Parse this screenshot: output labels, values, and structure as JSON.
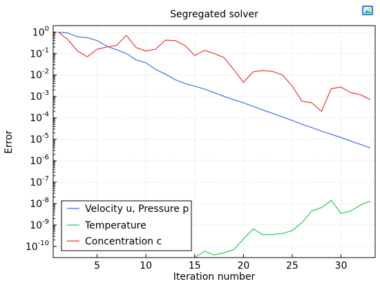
{
  "toolbar": {
    "export_icon": "image-export-icon"
  },
  "chart_data": {
    "type": "line",
    "title": "Segregated solver",
    "xlabel": "Iteration number",
    "ylabel": "Error",
    "xlim": [
      0.5,
      33.5
    ],
    "ylim": [
      3e-11,
      2
    ],
    "yscale": "log",
    "grid": true,
    "legend_position": "bottom-left",
    "x_ticks": [
      5,
      10,
      15,
      20,
      25,
      30
    ],
    "y_ticks": [
      {
        "value": 1,
        "base": "10",
        "exp": "0"
      },
      {
        "value": 0.1,
        "base": "10",
        "exp": "-1"
      },
      {
        "value": 0.01,
        "base": "10",
        "exp": "-2"
      },
      {
        "value": 0.001,
        "base": "10",
        "exp": "-3"
      },
      {
        "value": 0.0001,
        "base": "10",
        "exp": "-4"
      },
      {
        "value": 1e-05,
        "base": "10",
        "exp": "-5"
      },
      {
        "value": 1e-06,
        "base": "10",
        "exp": "-6"
      },
      {
        "value": 1e-07,
        "base": "10",
        "exp": "-7"
      },
      {
        "value": 1e-08,
        "base": "10",
        "exp": "-8"
      },
      {
        "value": 1e-09,
        "base": "10",
        "exp": "-9"
      },
      {
        "value": 1e-10,
        "base": "10",
        "exp": "-10"
      }
    ],
    "series": [
      {
        "name": "Velocity u, Pressure p",
        "color": "#3f6fe8",
        "x": [
          1,
          2,
          3,
          4,
          5,
          6,
          7,
          8,
          9,
          10,
          11,
          12,
          13,
          14,
          15,
          16,
          17,
          18,
          19,
          20,
          21,
          22,
          23,
          24,
          25,
          26,
          27,
          28,
          29,
          30,
          31,
          32,
          33
        ],
        "y": [
          1.0,
          0.9,
          0.6,
          0.55,
          0.4,
          0.22,
          0.15,
          0.1,
          0.05,
          0.037,
          0.018,
          0.011,
          0.006,
          0.004,
          0.003,
          0.0022,
          0.0015,
          0.001,
          0.0007,
          0.0005,
          0.00034,
          0.00023,
          0.00016,
          0.00011,
          7.5e-05,
          5e-05,
          3.5e-05,
          2.4e-05,
          1.7e-05,
          1.2e-05,
          8.2e-06,
          5.7e-06,
          3.9e-06
        ]
      },
      {
        "name": "Temperature",
        "color": "#22cc55",
        "x": [
          15,
          16,
          17,
          18,
          19,
          20,
          21,
          22,
          23,
          24,
          25,
          26,
          27,
          28,
          29,
          30,
          31,
          32,
          33
        ],
        "y": [
          3e-11,
          6e-11,
          4e-11,
          5e-11,
          7e-11,
          2.2e-10,
          6.5e-10,
          3.5e-10,
          3.6e-10,
          4e-10,
          5.5e-10,
          1.3e-09,
          4.5e-09,
          6.5e-09,
          1.4e-08,
          3.5e-09,
          4.5e-09,
          8.5e-09,
          1.3e-08
        ]
      },
      {
        "name": "Concentration c",
        "color": "#ee3333",
        "x": [
          1,
          2,
          3,
          4,
          5,
          6,
          7,
          8,
          9,
          10,
          11,
          12,
          13,
          14,
          15,
          16,
          17,
          18,
          19,
          20,
          21,
          22,
          23,
          24,
          25,
          26,
          27,
          28,
          29,
          30,
          31,
          32,
          33
        ],
        "y": [
          1.0,
          0.45,
          0.13,
          0.07,
          0.16,
          0.2,
          0.24,
          0.7,
          0.19,
          0.13,
          0.16,
          0.42,
          0.4,
          0.24,
          0.08,
          0.14,
          0.1,
          0.065,
          0.018,
          0.0045,
          0.014,
          0.016,
          0.0145,
          0.01,
          0.003,
          0.0006,
          0.0005,
          0.0002,
          0.0023,
          0.0027,
          0.0015,
          0.0012,
          0.0007
        ]
      }
    ]
  }
}
